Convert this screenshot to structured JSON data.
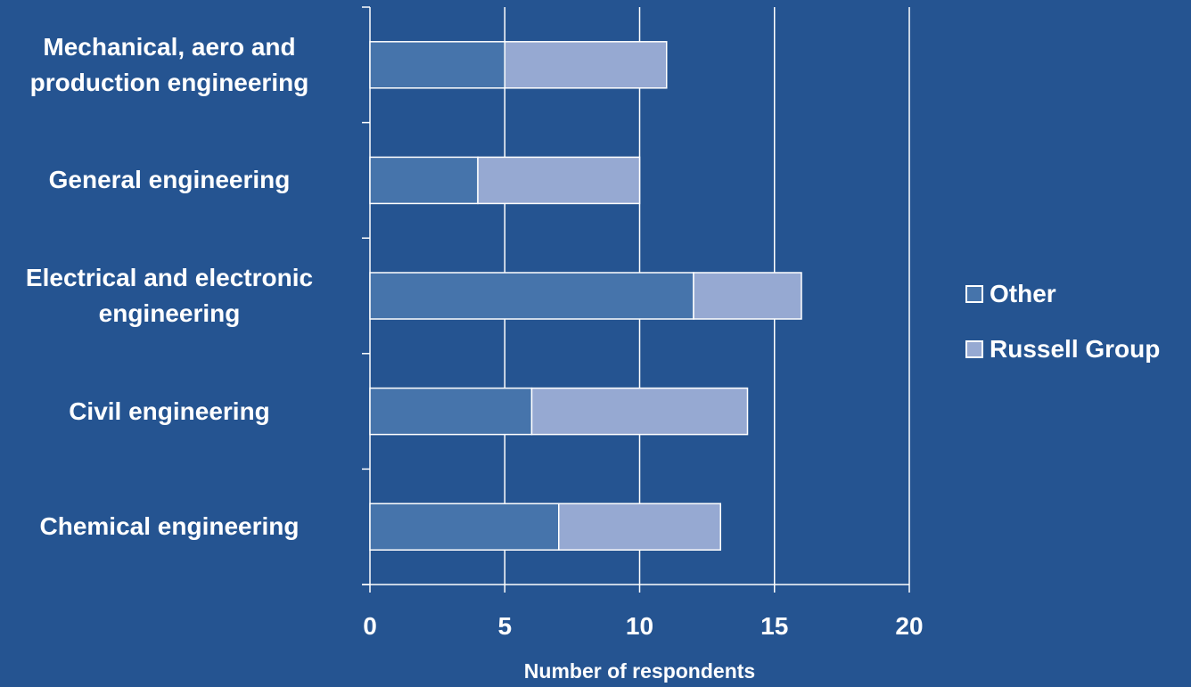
{
  "chart_data": {
    "type": "bar",
    "orientation": "horizontal",
    "stacked": true,
    "categories": [
      "Mechanical, aero and\nproduction engineering",
      "General engineering",
      "Electrical and electronic\nengineering",
      "Civil engineering",
      "Chemical engineering"
    ],
    "series": [
      {
        "name": "Other",
        "values": [
          5,
          4,
          12,
          6,
          7
        ],
        "color": "#4674ab"
      },
      {
        "name": "Russell Group",
        "values": [
          6,
          6,
          4,
          8,
          6
        ],
        "color": "#96a9d2"
      }
    ],
    "xlabel": "Number of respondents",
    "xlim": [
      0,
      20
    ],
    "xticks": [
      "0",
      "5",
      "10",
      "15",
      "20"
    ],
    "grid": true,
    "legend_position": "right",
    "background_color": "#255491",
    "text_color": "#ffffff"
  }
}
